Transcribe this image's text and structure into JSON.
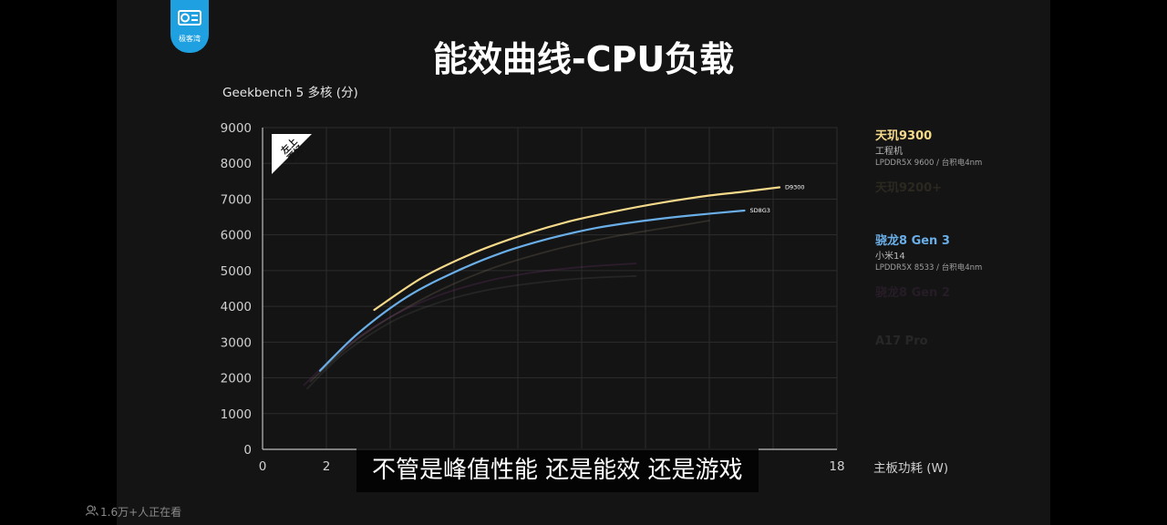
{
  "overlay": {
    "logo_text": "极客湾",
    "subtitle": "不管是峰值性能 还是能效 还是游戏",
    "viewer_count": "1.6万+人正在看",
    "badge_text": [
      "左上",
      "更好"
    ]
  },
  "chart_data": {
    "type": "line",
    "title": "能效曲线-CPU负载",
    "ylabel": "Geekbench 5 多核 (分)",
    "xlabel": "主板功耗 (W)",
    "xlim": [
      0,
      18
    ],
    "ylim": [
      0,
      9000
    ],
    "x_ticks": [
      0,
      2,
      18
    ],
    "y_ticks": [
      0,
      1000,
      2000,
      3000,
      4000,
      5000,
      6000,
      7000,
      8000,
      9000
    ],
    "grid": true,
    "legend_position": "right",
    "series": [
      {
        "name": "天玑9300",
        "device": "工程机",
        "spec": "LPDDR5X 9600 / 台积电4nm",
        "end_label": "D9300",
        "color": "#f5d98a",
        "highlight": true,
        "x": [
          3.5,
          5.0,
          6.5,
          8.0,
          9.5,
          11.0,
          12.5,
          14.0,
          15.0,
          16.2
        ],
        "values": [
          3900,
          4800,
          5450,
          5950,
          6350,
          6650,
          6900,
          7100,
          7200,
          7330
        ]
      },
      {
        "name": "天玑9200+",
        "device": "",
        "spec": "",
        "end_label": "",
        "color": "#9a8a70",
        "highlight": false,
        "x": [
          1.5,
          3.0,
          5.0,
          7.0,
          9.0,
          11.0,
          13.0,
          14.0
        ],
        "values": [
          1900,
          3100,
          4200,
          5000,
          5550,
          5950,
          6250,
          6400
        ]
      },
      {
        "name": "骁龙8 Gen 3",
        "device": "小米14",
        "spec": "LPDDR5X 8533 / 台积电4nm",
        "end_label": "SD8G3",
        "color": "#6aaee8",
        "highlight": true,
        "x": [
          1.8,
          3.0,
          4.5,
          6.0,
          7.5,
          9.0,
          10.5,
          12.0,
          13.5,
          15.1
        ],
        "values": [
          2200,
          3250,
          4250,
          4950,
          5500,
          5900,
          6200,
          6400,
          6550,
          6680
        ]
      },
      {
        "name": "骁龙8 Gen 2",
        "device": "",
        "spec": "",
        "end_label": "",
        "color": "#8a3a8a",
        "highlight": false,
        "x": [
          1.3,
          2.5,
          4.0,
          5.5,
          7.0,
          8.5,
          10.0,
          11.7
        ],
        "values": [
          1800,
          2800,
          3700,
          4300,
          4700,
          4950,
          5100,
          5200
        ]
      },
      {
        "name": "A17 Pro",
        "device": "",
        "spec": "",
        "end_label": "",
        "color": "#666666",
        "highlight": false,
        "x": [
          1.4,
          2.5,
          4.0,
          5.5,
          7.0,
          8.5,
          10.0,
          11.7
        ],
        "values": [
          1700,
          2650,
          3550,
          4100,
          4450,
          4650,
          4780,
          4850
        ]
      }
    ]
  }
}
